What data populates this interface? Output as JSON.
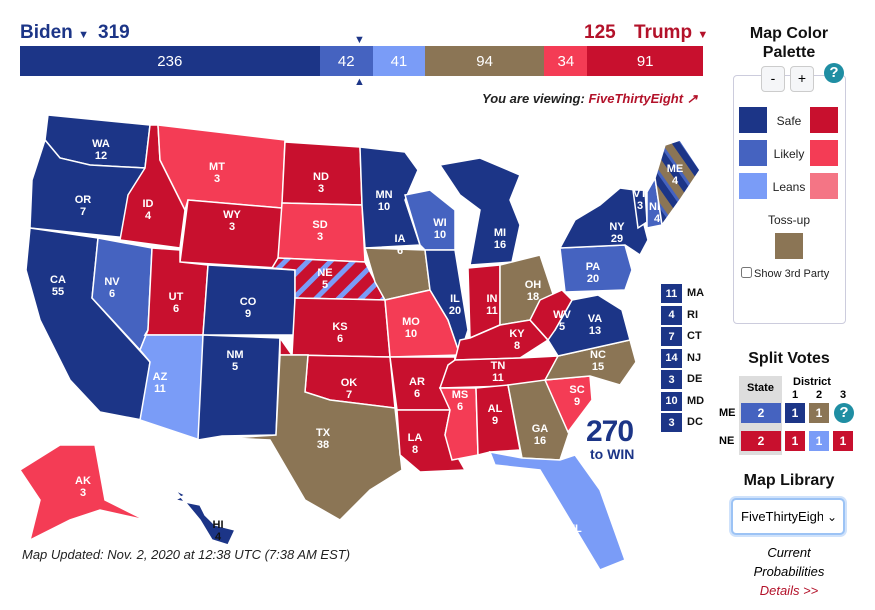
{
  "colors": {
    "safe_d": "#1c3587",
    "likely_d": "#4563c0",
    "leans_d": "#7a9cf7",
    "tossup": "#8b7555",
    "leans_r": "#f47585",
    "likely_r": "#f43c55",
    "safe_r": "#c8102e",
    "dem_text": "#1c3587",
    "rep_text": "#b3122a"
  },
  "header": {
    "dem_name": "Biden",
    "dem_total": "319",
    "rep_total": "125",
    "rep_name": "Trump"
  },
  "bar": [
    {
      "value": 236,
      "rating": "safe_d"
    },
    {
      "value": 42,
      "rating": "likely_d"
    },
    {
      "value": 41,
      "rating": "leans_d"
    },
    {
      "value": 94,
      "rating": "tossup"
    },
    {
      "value": 34,
      "rating": "likely_r"
    },
    {
      "value": 91,
      "rating": "safe_r"
    }
  ],
  "viewing": {
    "prefix": "You are viewing:",
    "source": "FiveThirtyEight"
  },
  "states": [
    {
      "abbr": "WA",
      "ev": "12",
      "rating": "safe_d"
    },
    {
      "abbr": "OR",
      "ev": "7",
      "rating": "safe_d"
    },
    {
      "abbr": "CA",
      "ev": "55",
      "rating": "safe_d"
    },
    {
      "abbr": "ID",
      "ev": "4",
      "rating": "safe_r"
    },
    {
      "abbr": "NV",
      "ev": "6",
      "rating": "likely_d"
    },
    {
      "abbr": "MT",
      "ev": "3",
      "rating": "likely_r"
    },
    {
      "abbr": "WY",
      "ev": "3",
      "rating": "safe_r"
    },
    {
      "abbr": "UT",
      "ev": "6",
      "rating": "safe_r"
    },
    {
      "abbr": "AZ",
      "ev": "11",
      "rating": "leans_d"
    },
    {
      "abbr": "CO",
      "ev": "9",
      "rating": "safe_d"
    },
    {
      "abbr": "NM",
      "ev": "5",
      "rating": "safe_d"
    },
    {
      "abbr": "ND",
      "ev": "3",
      "rating": "safe_r"
    },
    {
      "abbr": "SD",
      "ev": "3",
      "rating": "likely_r"
    },
    {
      "abbr": "NE",
      "ev": "5",
      "rating": "split_ne"
    },
    {
      "abbr": "KS",
      "ev": "6",
      "rating": "safe_r"
    },
    {
      "abbr": "OK",
      "ev": "7",
      "rating": "safe_r"
    },
    {
      "abbr": "TX",
      "ev": "38",
      "rating": "tossup"
    },
    {
      "abbr": "MN",
      "ev": "10",
      "rating": "safe_d"
    },
    {
      "abbr": "IA",
      "ev": "6",
      "rating": "tossup"
    },
    {
      "abbr": "MO",
      "ev": "10",
      "rating": "likely_r"
    },
    {
      "abbr": "AR",
      "ev": "6",
      "rating": "safe_r"
    },
    {
      "abbr": "LA",
      "ev": "8",
      "rating": "safe_r"
    },
    {
      "abbr": "WI",
      "ev": "10",
      "rating": "likely_d"
    },
    {
      "abbr": "IL",
      "ev": "20",
      "rating": "safe_d"
    },
    {
      "abbr": "MI",
      "ev": "16",
      "rating": "safe_d"
    },
    {
      "abbr": "IN",
      "ev": "11",
      "rating": "safe_r"
    },
    {
      "abbr": "OH",
      "ev": "18",
      "rating": "tossup"
    },
    {
      "abbr": "KY",
      "ev": "8",
      "rating": "safe_r"
    },
    {
      "abbr": "TN",
      "ev": "11",
      "rating": "safe_r"
    },
    {
      "abbr": "MS",
      "ev": "6",
      "rating": "likely_r"
    },
    {
      "abbr": "AL",
      "ev": "9",
      "rating": "safe_r"
    },
    {
      "abbr": "GA",
      "ev": "16",
      "rating": "tossup"
    },
    {
      "abbr": "FL",
      "ev": "29",
      "rating": "leans_d"
    },
    {
      "abbr": "SC",
      "ev": "9",
      "rating": "likely_r"
    },
    {
      "abbr": "NC",
      "ev": "15",
      "rating": "tossup"
    },
    {
      "abbr": "VA",
      "ev": "13",
      "rating": "safe_d"
    },
    {
      "abbr": "WV",
      "ev": "5",
      "rating": "safe_r"
    },
    {
      "abbr": "PA",
      "ev": "20",
      "rating": "likely_d"
    },
    {
      "abbr": "NY",
      "ev": "29",
      "rating": "safe_d"
    },
    {
      "abbr": "VT",
      "ev": "3",
      "rating": "safe_d"
    },
    {
      "abbr": "NH",
      "ev": "4",
      "rating": "likely_d"
    },
    {
      "abbr": "ME",
      "ev": "4",
      "rating": "split_me"
    },
    {
      "abbr": "AK",
      "ev": "3",
      "rating": "likely_r"
    },
    {
      "abbr": "HI",
      "ev": "4",
      "rating": "safe_d"
    }
  ],
  "small_states": [
    {
      "abbr": "MA",
      "ev": "11"
    },
    {
      "abbr": "RI",
      "ev": "4"
    },
    {
      "abbr": "CT",
      "ev": "7"
    },
    {
      "abbr": "NJ",
      "ev": "14"
    },
    {
      "abbr": "DE",
      "ev": "3"
    },
    {
      "abbr": "MD",
      "ev": "10"
    },
    {
      "abbr": "DC",
      "ev": "3"
    }
  ],
  "logo": {
    "number": "270",
    "sub": "to WIN"
  },
  "updated": "Map Updated: Nov. 2, 2020 at 12:38 UTC (7:38 AM EST)",
  "palette": {
    "title": "Map Color Palette",
    "minus": "-",
    "plus": "+",
    "help": "?",
    "safe": "Safe",
    "likely": "Likely",
    "leans": "Leans",
    "tossup": "Toss-up",
    "third_party": "Show 3rd Party"
  },
  "split": {
    "title": "Split Votes",
    "state_header": "State",
    "district_header": "District",
    "districts": [
      "1",
      "2",
      "3"
    ],
    "rows": [
      {
        "state": "ME",
        "cells": [
          {
            "v": "2",
            "rating": "likely_d"
          },
          {
            "v": "1",
            "rating": "safe_d"
          },
          {
            "v": "1",
            "rating": "tossup"
          },
          {
            "v": "?",
            "rating": "help"
          }
        ]
      },
      {
        "state": "NE",
        "cells": [
          {
            "v": "2",
            "rating": "safe_r"
          },
          {
            "v": "1",
            "rating": "safe_r"
          },
          {
            "v": "1",
            "rating": "leans_d"
          },
          {
            "v": "1",
            "rating": "safe_r"
          }
        ]
      }
    ]
  },
  "library": {
    "title": "Map Library",
    "selected": "FiveThirtyEight",
    "caption1": "Current",
    "caption2": "Probabilities",
    "details": "Details >>"
  }
}
